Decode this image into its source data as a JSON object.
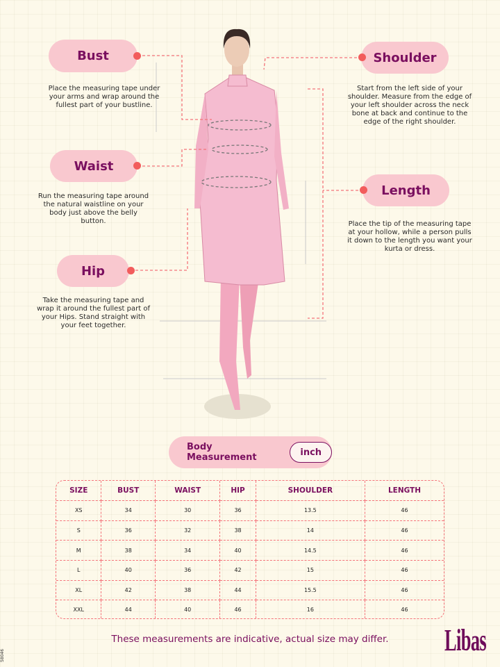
{
  "guide": {
    "bust": {
      "label": "Bust",
      "text": "Place the measuring tape under your arms and wrap around the fullest part of your bustline."
    },
    "waist": {
      "label": "Waist",
      "text": "Run the measuring tape around the natural waistline on your body just above the belly button."
    },
    "hip": {
      "label": "Hip",
      "text": "Take the measuring tape and wrap it around the fullest part of your Hips. Stand straight with your feet together."
    },
    "shoulder": {
      "label": "Shoulder",
      "text": "Start from the left side of your shoulder. Measure from the edge of your left shoulder across the neck bone at back and continue to the edge of the right shoulder."
    },
    "length": {
      "label": "Length",
      "text": "Place the tip of the measuring tape at your hollow, while a person pulls it down to the length you want your kurta or dress."
    }
  },
  "table_title": "Body Measurement",
  "unit": "inch",
  "table": {
    "headers": [
      "SIZE",
      "BUST",
      "WAIST",
      "HIP",
      "SHOULDER",
      "LENGTH"
    ],
    "rows": [
      [
        "XS",
        "34",
        "30",
        "36",
        "13.5",
        "46"
      ],
      [
        "S",
        "36",
        "32",
        "38",
        "14",
        "46"
      ],
      [
        "M",
        "38",
        "34",
        "40",
        "14.5",
        "46"
      ],
      [
        "L",
        "40",
        "36",
        "42",
        "15",
        "46"
      ],
      [
        "XL",
        "42",
        "38",
        "44",
        "15.5",
        "46"
      ],
      [
        "XXL",
        "44",
        "40",
        "46",
        "16",
        "46"
      ]
    ]
  },
  "footer": "These measurements are indicative, actual size may differ.",
  "brand": "Libas",
  "code": "58046",
  "colors": {
    "accent": "#7a0f5f",
    "pill": "#f9c8cf",
    "dashed": "#f4737a",
    "dot": "#f25c5c",
    "background": "#fdf9ea"
  }
}
